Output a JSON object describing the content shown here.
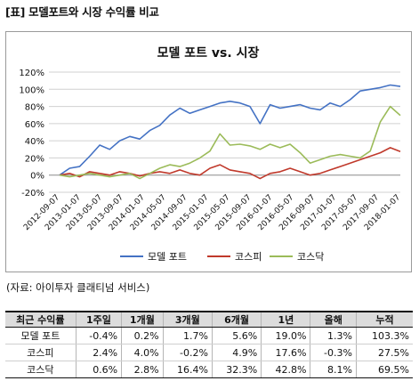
{
  "heading": "[표] 모델포트와 시장 수익률 비교",
  "source": "(자료: 아이투자 클래티넘 서비스)",
  "chart_data": {
    "type": "line",
    "title": "모델 포트 vs. 시장",
    "x_ticks": [
      "2012-09-07",
      "2013-01-07",
      "2013-05-07",
      "2013-09-07",
      "2014-01-07",
      "2014-05-07",
      "2014-09-07",
      "2015-01-07",
      "2015-05-07",
      "2015-09-07",
      "2016-01-07",
      "2016-05-07",
      "2016-09-07",
      "2017-01-07",
      "2017-05-07",
      "2017-09-07",
      "2018-01-07"
    ],
    "y_ticks": [
      "-20%",
      "0%",
      "20%",
      "40%",
      "60%",
      "80%",
      "100%",
      "120%"
    ],
    "ylim": [
      -20,
      120
    ],
    "grid": true,
    "legend_position": "bottom",
    "x": [
      "2012-09",
      "2012-11",
      "2013-01",
      "2013-03",
      "2013-05",
      "2013-07",
      "2013-09",
      "2013-11",
      "2014-01",
      "2014-03",
      "2014-05",
      "2014-07",
      "2014-09",
      "2014-11",
      "2015-01",
      "2015-03",
      "2015-05",
      "2015-07",
      "2015-09",
      "2015-11",
      "2016-01",
      "2016-03",
      "2016-05",
      "2016-07",
      "2016-09",
      "2016-11",
      "2017-01",
      "2017-03",
      "2017-05",
      "2017-07",
      "2017-09",
      "2017-11",
      "2018-01",
      "2018-03",
      "2018-04"
    ],
    "series": [
      {
        "name": "모델 포트",
        "color": "#4472c4",
        "values": [
          0,
          8,
          10,
          22,
          35,
          30,
          40,
          45,
          42,
          52,
          58,
          70,
          78,
          72,
          76,
          80,
          84,
          86,
          84,
          80,
          60,
          82,
          78,
          80,
          82,
          78,
          76,
          84,
          80,
          88,
          98,
          100,
          102,
          105,
          103.3
        ]
      },
      {
        "name": "코스피",
        "color": "#c0392b",
        "values": [
          0,
          2,
          -2,
          4,
          2,
          0,
          4,
          2,
          -1,
          2,
          4,
          2,
          6,
          2,
          0,
          8,
          12,
          6,
          4,
          2,
          -4,
          2,
          4,
          8,
          4,
          0,
          2,
          6,
          10,
          14,
          18,
          22,
          26,
          32,
          27.5
        ]
      },
      {
        "name": "코스닥",
        "color": "#9bbb59",
        "values": [
          0,
          -2,
          0,
          2,
          0,
          -2,
          0,
          2,
          -4,
          2,
          8,
          12,
          10,
          14,
          20,
          28,
          48,
          35,
          36,
          34,
          30,
          36,
          32,
          36,
          26,
          14,
          18,
          22,
          24,
          22,
          20,
          28,
          62,
          80,
          69.5
        ]
      }
    ]
  },
  "table": {
    "headers": [
      "최근 수익률",
      "1주일",
      "1개월",
      "3개월",
      "6개월",
      "1년",
      "올해",
      "누적"
    ],
    "rows": [
      [
        "모델 포트",
        "-0.4%",
        "0.2%",
        "1.7%",
        "5.6%",
        "19.0%",
        "1.3%",
        "103.3%"
      ],
      [
        "코스피",
        "2.4%",
        "4.0%",
        "-0.2%",
        "4.9%",
        "17.6%",
        "-0.3%",
        "27.5%"
      ],
      [
        "코스닥",
        "0.6%",
        "2.8%",
        "16.4%",
        "32.3%",
        "42.8%",
        "8.1%",
        "69.5%"
      ]
    ]
  }
}
